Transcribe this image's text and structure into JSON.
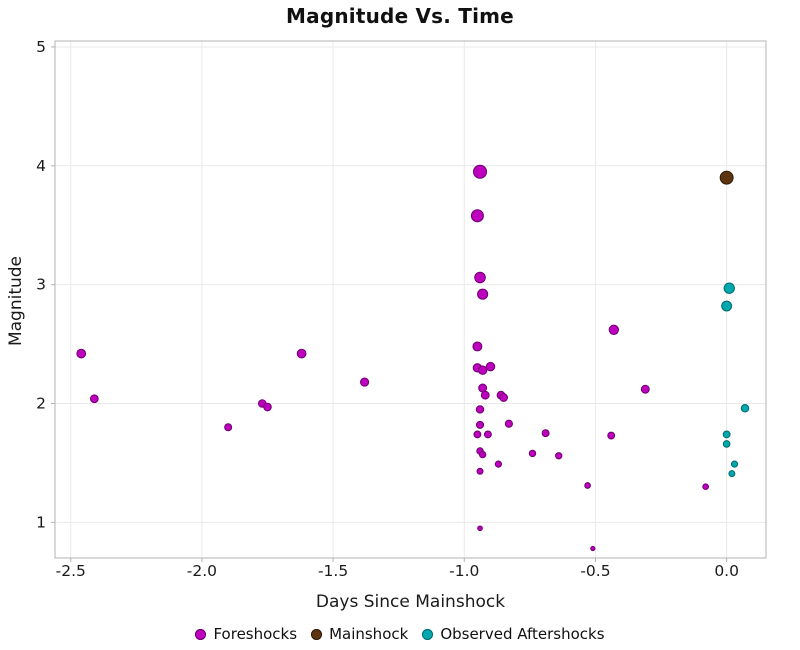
{
  "chart_data": {
    "type": "scatter",
    "title": "Magnitude Vs. Time",
    "xlabel": "Days Since Mainshock",
    "ylabel": "Magnitude",
    "xlim": [
      -2.56,
      0.15
    ],
    "ylim": [
      0.7,
      5.05
    ],
    "grid": true,
    "legend_position": "bottom-center",
    "size_encoding": "marker size scales with magnitude",
    "xticks": [
      {
        "v": -2.5,
        "label": "-2.5"
      },
      {
        "v": -2.0,
        "label": "-2.0"
      },
      {
        "v": -1.5,
        "label": "-1.5"
      },
      {
        "v": -1.0,
        "label": "-1.0"
      },
      {
        "v": -0.5,
        "label": "-0.5"
      },
      {
        "v": 0.0,
        "label": "0.0"
      }
    ],
    "yticks": [
      {
        "v": 1,
        "label": "1"
      },
      {
        "v": 2,
        "label": "2"
      },
      {
        "v": 3,
        "label": "3"
      },
      {
        "v": 4,
        "label": "4"
      },
      {
        "v": 5,
        "label": "5"
      }
    ],
    "colors": {
      "grid": "#e9e9e9",
      "border": "#b3b3b3",
      "tick_text": "#1a1a1a"
    },
    "series": [
      {
        "name": "Foreshocks",
        "color": "#bd00bd",
        "edge_color": "#6e006e",
        "points": [
          [
            -2.46,
            2.42
          ],
          [
            -2.41,
            2.04
          ],
          [
            -1.9,
            1.8
          ],
          [
            -1.77,
            2.0
          ],
          [
            -1.75,
            1.97
          ],
          [
            -1.62,
            2.42
          ],
          [
            -1.38,
            2.18
          ],
          [
            -0.94,
            3.95
          ],
          [
            -0.95,
            3.58
          ],
          [
            -0.94,
            3.06
          ],
          [
            -0.93,
            2.92
          ],
          [
            -0.95,
            2.48
          ],
          [
            -0.95,
            2.3
          ],
          [
            -0.93,
            2.28
          ],
          [
            -0.9,
            2.31
          ],
          [
            -0.93,
            2.13
          ],
          [
            -0.92,
            2.07
          ],
          [
            -0.86,
            2.07
          ],
          [
            -0.85,
            2.05
          ],
          [
            -0.94,
            1.95
          ],
          [
            -0.94,
            1.82
          ],
          [
            -0.83,
            1.83
          ],
          [
            -0.95,
            1.74
          ],
          [
            -0.91,
            1.74
          ],
          [
            -0.69,
            1.75
          ],
          [
            -0.94,
            1.6
          ],
          [
            -0.93,
            1.57
          ],
          [
            -0.74,
            1.58
          ],
          [
            -0.64,
            1.56
          ],
          [
            -0.87,
            1.49
          ],
          [
            -0.94,
            1.43
          ],
          [
            -0.94,
            0.95
          ],
          [
            -0.43,
            2.62
          ],
          [
            -0.44,
            1.73
          ],
          [
            -0.31,
            2.12
          ],
          [
            -0.53,
            1.31
          ],
          [
            -0.51,
            0.78
          ],
          [
            -0.08,
            1.3
          ]
        ]
      },
      {
        "name": "Mainshock",
        "color": "#5e340f",
        "edge_color": "#2e1a06",
        "points": [
          [
            0.0,
            3.9
          ]
        ]
      },
      {
        "name": "Observed Aftershocks",
        "color": "#00a8ad",
        "edge_color": "#006a6e",
        "points": [
          [
            0.01,
            2.97
          ],
          [
            0.0,
            2.82
          ],
          [
            0.07,
            1.96
          ],
          [
            0.0,
            1.74
          ],
          [
            0.0,
            1.66
          ],
          [
            0.03,
            1.49
          ],
          [
            0.02,
            1.41
          ]
        ]
      }
    ]
  }
}
